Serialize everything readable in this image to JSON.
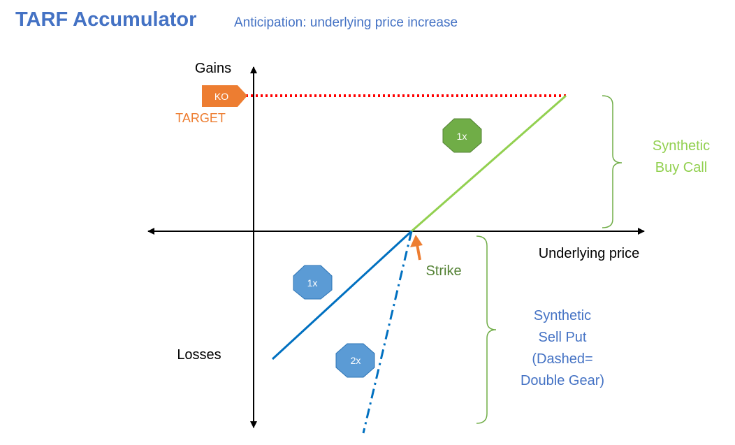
{
  "header": {
    "title": "TARF Accumulator",
    "subtitle": "Anticipation: underlying price increase"
  },
  "axes": {
    "y_top_label": "Gains",
    "y_bottom_label": "Losses",
    "x_label": "Underlying price"
  },
  "knockout": {
    "badge": "KO",
    "label": "TARGET"
  },
  "strike": {
    "label": "Strike"
  },
  "gear_badges": {
    "call_gear": "1x",
    "put_gear": "1x",
    "put_double_gear": "2x"
  },
  "braces": {
    "call_lines": [
      "Synthetic",
      "Buy Call"
    ],
    "put_lines": [
      "Synthetic",
      "Sell Put",
      "(Dashed=",
      "Double Gear)"
    ]
  },
  "colors": {
    "title": "#4472C4",
    "axis": "#000000",
    "ko_line": "#FF0000",
    "ko_badge": "#ED7D31",
    "call_line": "#92D050",
    "put_line": "#0070C0",
    "badge_green": "#70AD47",
    "badge_blue": "#5B9BD5",
    "strike_label": "#548235",
    "brace_call_text": "#92D050",
    "brace_put_text": "#4472C4",
    "brace_stroke": "#70AD47"
  }
}
